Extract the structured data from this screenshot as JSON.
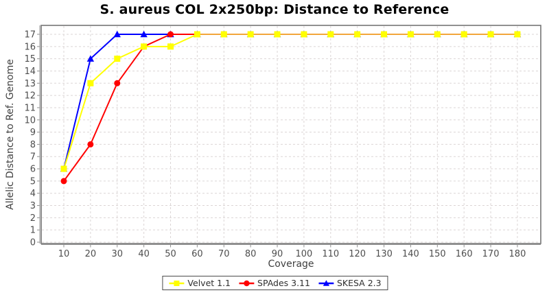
{
  "chart_data": {
    "type": "line",
    "title": "S. aureus COL 2x250bp: Distance to Reference",
    "xlabel": "Coverage",
    "ylabel": "Allelic Distance to Ref. Genome",
    "x": [
      10,
      20,
      30,
      40,
      50,
      60,
      70,
      80,
      90,
      100,
      110,
      120,
      130,
      140,
      150,
      160,
      170,
      180
    ],
    "ylim": [
      0,
      17
    ],
    "yticks": [
      0,
      1,
      2,
      3,
      4,
      5,
      6,
      7,
      8,
      9,
      10,
      11,
      12,
      13,
      14,
      15,
      16,
      17
    ],
    "grid": true,
    "grid_style": "dashed",
    "legend_position": "bottom",
    "series": [
      {
        "name": "Velvet 1.1",
        "color": "#FFFF00",
        "marker": "square",
        "values": [
          6,
          13,
          15,
          16,
          16,
          17,
          17,
          17,
          17,
          17,
          17,
          17,
          17,
          17,
          17,
          17,
          17,
          17
        ]
      },
      {
        "name": "SPAdes 3.11",
        "color": "#FF0000",
        "marker": "circle",
        "values": [
          5,
          8,
          13,
          16,
          17,
          17,
          17,
          17,
          17,
          17,
          17,
          17,
          17,
          17,
          17,
          17,
          17,
          17
        ]
      },
      {
        "name": "SKESA 2.3",
        "color": "#0000FF",
        "marker": "triangle-up",
        "values": [
          6,
          15,
          17,
          17,
          17,
          17,
          17,
          17,
          17,
          17,
          17,
          17,
          17,
          17,
          17,
          17,
          17,
          17
        ]
      }
    ],
    "draw_order": [
      2,
      1,
      0
    ],
    "overlap_line_color": "#F2A63C",
    "colors": {
      "grid": "#DBD5D5",
      "plot_border": "#757575",
      "axis_line": "#8F8F8F",
      "tick_label": "#4D4D4D",
      "axis_label": "#3F3F3F",
      "title": "#000000",
      "legend_border": "#4A4A4A",
      "background": "#FFFFFF"
    }
  }
}
